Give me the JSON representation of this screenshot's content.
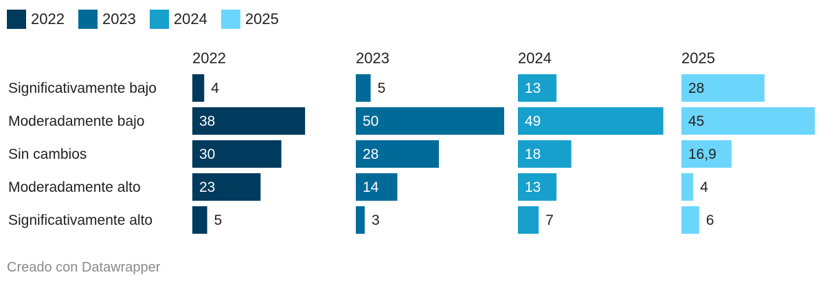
{
  "legend": [
    {
      "label": "2022",
      "color": "#003a5d"
    },
    {
      "label": "2023",
      "color": "#006b99"
    },
    {
      "label": "2024",
      "color": "#18a0cc"
    },
    {
      "label": "2025",
      "color": "#6cd5fc"
    }
  ],
  "chart_data": {
    "type": "bar",
    "orientation": "horizontal",
    "layout": "small-multiples",
    "categories": [
      "Significativamente bajo",
      "Moderadamente bajo",
      "Sin cambios",
      "Moderadamente alto",
      "Significativamente alto"
    ],
    "series": [
      {
        "name": "2022",
        "color": "#003a5d",
        "values": [
          4,
          38,
          30,
          23,
          5
        ],
        "labels": [
          "4",
          "38",
          "30",
          "23",
          "5"
        ]
      },
      {
        "name": "2023",
        "color": "#006b99",
        "values": [
          5,
          50,
          28,
          14,
          3
        ],
        "labels": [
          "5",
          "50",
          "28",
          "14",
          "3"
        ]
      },
      {
        "name": "2024",
        "color": "#18a0cc",
        "values": [
          13,
          49,
          18,
          13,
          7
        ],
        "labels": [
          "13",
          "49",
          "18",
          "13",
          "7"
        ]
      },
      {
        "name": "2025",
        "color": "#6cd5fc",
        "values": [
          28,
          45,
          16.9,
          4,
          6
        ],
        "labels": [
          "28",
          "45",
          "16,9",
          "4",
          "6"
        ]
      }
    ],
    "xlim": [
      0,
      50
    ]
  },
  "footer": {
    "credit": "Creado con Datawrapper"
  }
}
